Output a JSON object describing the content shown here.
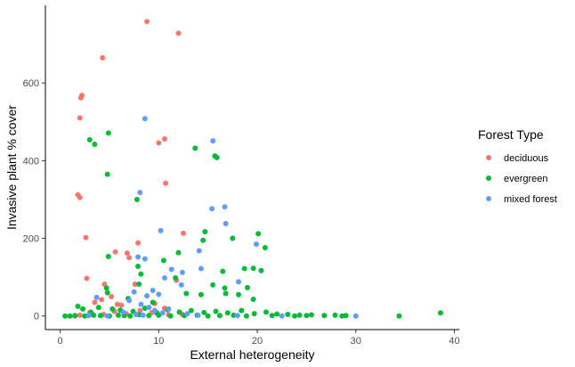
{
  "chart_data": {
    "type": "scatter",
    "xlabel": "External heterogeneity",
    "ylabel": "Invasive plant % cover",
    "xlim": [
      -1.5,
      40.5
    ],
    "ylim": [
      -35,
      800
    ],
    "x_ticks": [
      0,
      10,
      20,
      30,
      40
    ],
    "y_ticks": [
      0,
      200,
      400,
      600
    ],
    "grid": false,
    "legend": {
      "title": "Forest Type",
      "placement": "right",
      "entries": [
        "deciduous",
        "evergreen",
        "mixed forest"
      ]
    },
    "colors": {
      "deciduous": "#F8766D",
      "evergreen": "#00BA38",
      "mixed forest": "#619CFF"
    },
    "series": [
      {
        "name": "deciduous",
        "points": [
          [
            8.8,
            758
          ],
          [
            12.0,
            728
          ],
          [
            4.3,
            665
          ],
          [
            2.2,
            568
          ],
          [
            2.1,
            562
          ],
          [
            2.0,
            510
          ],
          [
            10.6,
            456
          ],
          [
            10.0,
            446
          ],
          [
            10.7,
            342
          ],
          [
            1.8,
            312
          ],
          [
            2.0,
            305
          ],
          [
            2.6,
            202
          ],
          [
            7.9,
            188
          ],
          [
            5.6,
            165
          ],
          [
            6.8,
            162
          ],
          [
            12.5,
            213
          ],
          [
            7.0,
            150
          ],
          [
            2.7,
            97
          ],
          [
            4.5,
            82
          ],
          [
            7.6,
            82
          ],
          [
            11.8,
            92
          ],
          [
            3.5,
            35
          ],
          [
            4.2,
            42
          ],
          [
            5.2,
            50
          ],
          [
            5.8,
            30
          ],
          [
            6.2,
            28
          ],
          [
            9.6,
            32
          ],
          [
            10.6,
            20
          ],
          [
            2.0,
            2
          ],
          [
            3.0,
            8
          ],
          [
            4.4,
            4
          ],
          [
            5.5,
            12
          ],
          [
            6.7,
            6
          ],
          [
            8.1,
            14
          ],
          [
            9.3,
            9
          ],
          [
            11.0,
            3
          ],
          [
            12.4,
            4
          ],
          [
            1.5,
            0
          ],
          [
            2.9,
            1
          ]
        ]
      },
      {
        "name": "evergreen",
        "points": [
          [
            3.0,
            454
          ],
          [
            3.5,
            442
          ],
          [
            4.9,
            471
          ],
          [
            4.8,
            365
          ],
          [
            13.7,
            432
          ],
          [
            15.7,
            412
          ],
          [
            15.9,
            408
          ],
          [
            7.8,
            300
          ],
          [
            14.7,
            217
          ],
          [
            20.1,
            212
          ],
          [
            14.5,
            195
          ],
          [
            17.5,
            200
          ],
          [
            20.8,
            176
          ],
          [
            12.0,
            163
          ],
          [
            4.9,
            153
          ],
          [
            10.5,
            143
          ],
          [
            7.9,
            128
          ],
          [
            18.7,
            122
          ],
          [
            19.6,
            123
          ],
          [
            16.5,
            115
          ],
          [
            20.4,
            117
          ],
          [
            8.2,
            108
          ],
          [
            11.7,
            98
          ],
          [
            8.0,
            82
          ],
          [
            15.5,
            80
          ],
          [
            16.7,
            72
          ],
          [
            19.0,
            73
          ],
          [
            4.7,
            72
          ],
          [
            12.8,
            58
          ],
          [
            14.3,
            55
          ],
          [
            16.8,
            58
          ],
          [
            18.1,
            55
          ],
          [
            19.6,
            43
          ],
          [
            4.8,
            60
          ],
          [
            6.9,
            45
          ],
          [
            9.4,
            35
          ],
          [
            1.8,
            25
          ],
          [
            2.3,
            18
          ],
          [
            3.1,
            10
          ],
          [
            3.9,
            22
          ],
          [
            5.3,
            18
          ],
          [
            6.1,
            15
          ],
          [
            7.4,
            12
          ],
          [
            8.6,
            20
          ],
          [
            9.8,
            8
          ],
          [
            10.9,
            16
          ],
          [
            12.1,
            10
          ],
          [
            13.3,
            14
          ],
          [
            14.6,
            9
          ],
          [
            15.8,
            12
          ],
          [
            17.0,
            8
          ],
          [
            18.4,
            14
          ],
          [
            19.7,
            6
          ],
          [
            20.9,
            10
          ],
          [
            22.0,
            5
          ],
          [
            23.1,
            4
          ],
          [
            24.3,
            2
          ],
          [
            25.5,
            3
          ],
          [
            26.8,
            1
          ],
          [
            27.9,
            2
          ],
          [
            28.6,
            0
          ],
          [
            29.0,
            1
          ],
          [
            0.5,
            0
          ],
          [
            1.0,
            0
          ],
          [
            1.5,
            1
          ],
          [
            2.5,
            0
          ],
          [
            3.4,
            2
          ],
          [
            4.1,
            1
          ],
          [
            5.0,
            0
          ],
          [
            5.9,
            2
          ],
          [
            6.5,
            1
          ],
          [
            7.1,
            0
          ],
          [
            8.0,
            3
          ],
          [
            9.0,
            1
          ],
          [
            10.0,
            2
          ],
          [
            11.2,
            0
          ],
          [
            12.6,
            1
          ],
          [
            13.9,
            2
          ],
          [
            15.0,
            0
          ],
          [
            16.2,
            1
          ],
          [
            17.6,
            2
          ],
          [
            18.9,
            0
          ],
          [
            21.5,
            1
          ],
          [
            23.8,
            0
          ],
          [
            25.0,
            1
          ],
          [
            34.4,
            0
          ],
          [
            38.6,
            8
          ]
        ]
      },
      {
        "name": "mixed forest",
        "points": [
          [
            8.6,
            508
          ],
          [
            15.5,
            451
          ],
          [
            8.1,
            318
          ],
          [
            16.7,
            281
          ],
          [
            15.4,
            276
          ],
          [
            16.8,
            238
          ],
          [
            10.2,
            220
          ],
          [
            14.1,
            168
          ],
          [
            19.9,
            185
          ],
          [
            7.9,
            152
          ],
          [
            8.6,
            147
          ],
          [
            11.3,
            120
          ],
          [
            12.4,
            112
          ],
          [
            14.3,
            122
          ],
          [
            18.1,
            88
          ],
          [
            10.6,
            98
          ],
          [
            12.3,
            80
          ],
          [
            7.5,
            62
          ],
          [
            9.4,
            66
          ],
          [
            10.0,
            56
          ],
          [
            8.8,
            52
          ],
          [
            3.7,
            48
          ],
          [
            7.0,
            40
          ],
          [
            8.2,
            30
          ],
          [
            9.0,
            22
          ],
          [
            9.6,
            14
          ],
          [
            10.4,
            8
          ],
          [
            11.0,
            18
          ],
          [
            12.9,
            6
          ],
          [
            6.4,
            10
          ],
          [
            7.7,
            4
          ],
          [
            8.4,
            2
          ],
          [
            2.9,
            2
          ],
          [
            4.8,
            0
          ],
          [
            14.0,
            2
          ],
          [
            18.0,
            1
          ],
          [
            22.5,
            0
          ],
          [
            30.0,
            0
          ]
        ]
      }
    ]
  }
}
